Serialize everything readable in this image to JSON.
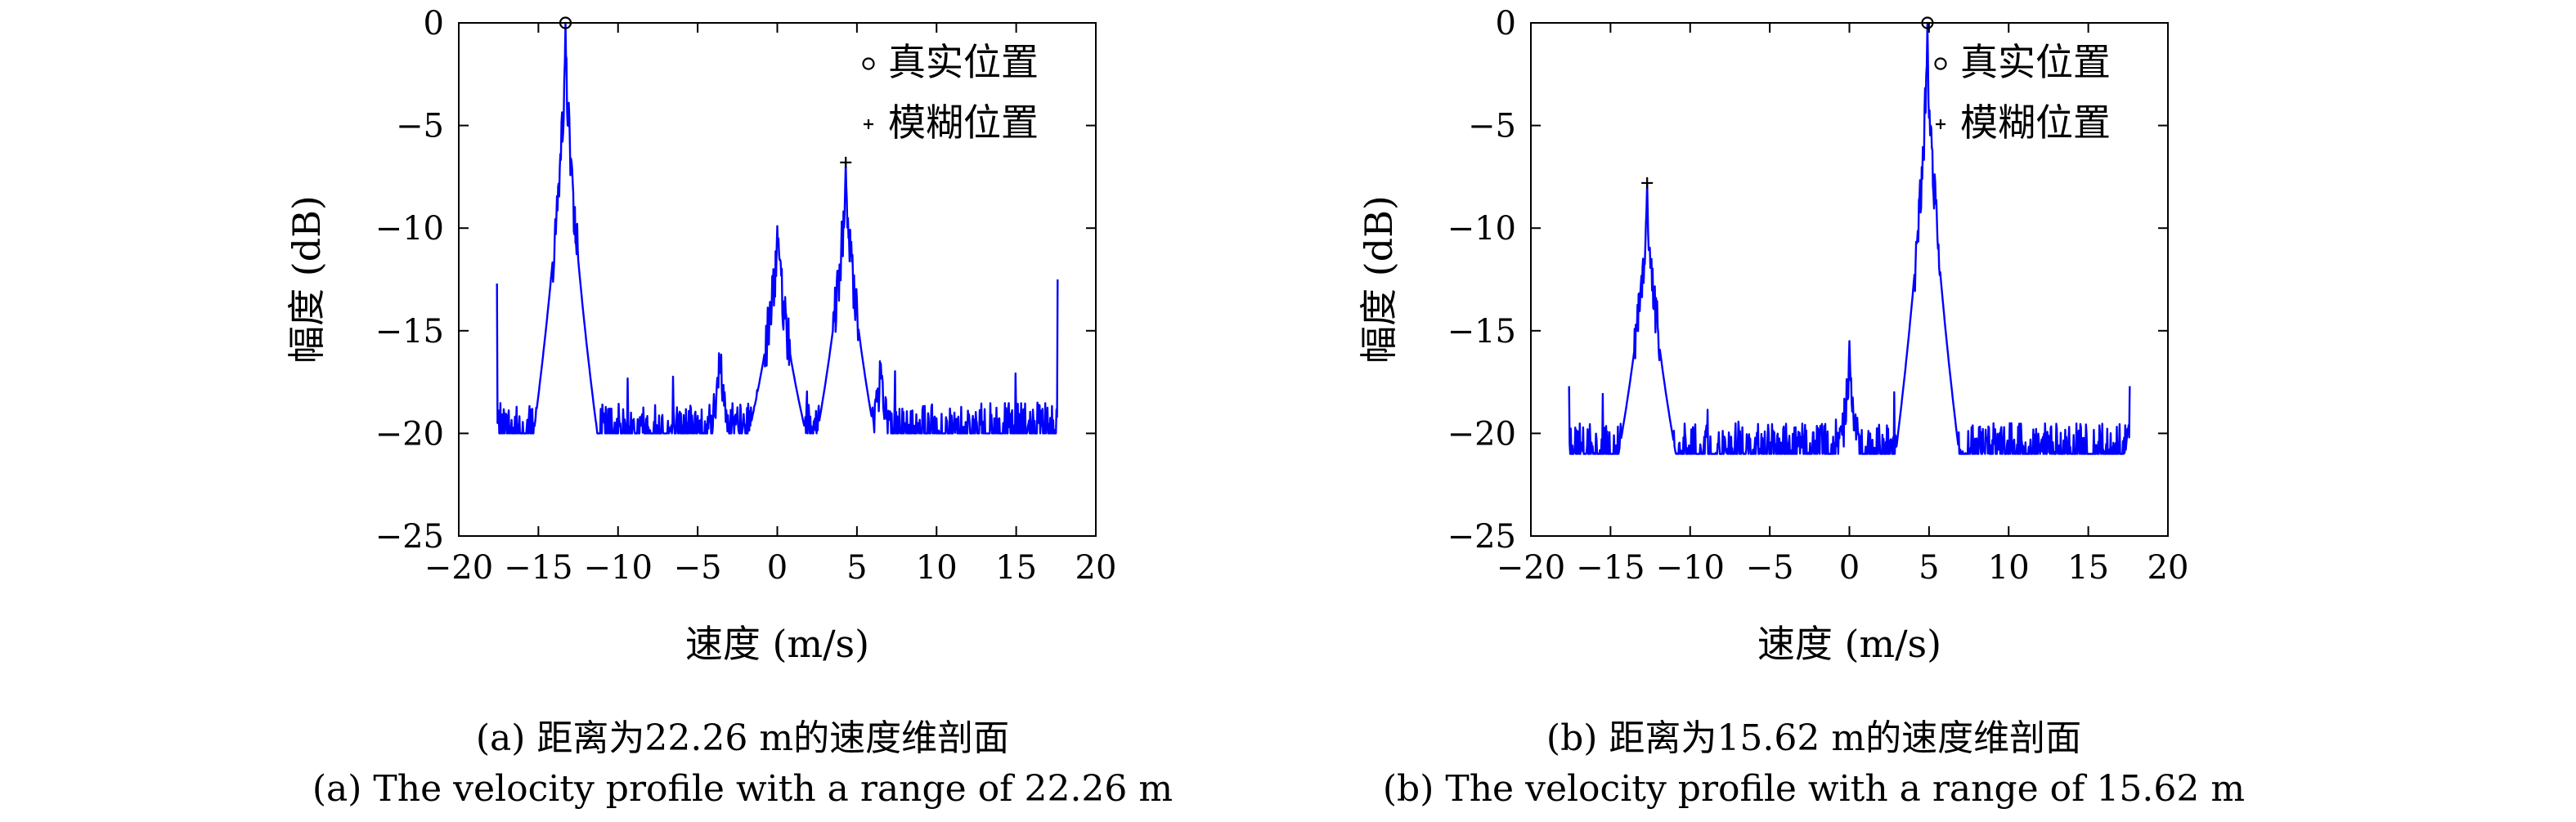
{
  "chart_data": [
    {
      "type": "line",
      "xlabel": "速度 (m/s)",
      "ylabel": "幅度 (dB)",
      "xlim": [
        -20,
        20
      ],
      "ylim": [
        -25,
        0
      ],
      "xticks": [
        -20,
        -15,
        -10,
        -5,
        0,
        5,
        10,
        15,
        20
      ],
      "yticks": [
        0,
        -5,
        -10,
        -15,
        -20,
        -25
      ],
      "xtick_labels": [
        "−20",
        "−15",
        "−10",
        "−5",
        "0",
        "5",
        "10",
        "15",
        "20"
      ],
      "ytick_labels": [
        "0",
        "−5",
        "−10",
        "−15",
        "−20",
        "−25"
      ],
      "grid": false,
      "legend_position": "top-right",
      "legend": [
        {
          "label": "真实位置",
          "marker": "circle"
        },
        {
          "label": "模糊位置",
          "marker": "plus"
        }
      ],
      "series": [
        {
          "color": "#0000ff",
          "x_range": [
            -17.6,
            17.6
          ],
          "noise_floor": -20,
          "edge_values": [
            -12.7,
            -12.5
          ],
          "peaks": [
            [
              -13.3,
              0
            ],
            [
              4.3,
              -6.8
            ],
            [
              0,
              -9.9
            ],
            [
              -3.6,
              -16.3
            ],
            [
              6.5,
              -16.6
            ]
          ]
        }
      ],
      "markers": {
        "true_position": {
          "x": -13.3,
          "y": 0
        },
        "ambiguous_position": {
          "x": 4.3,
          "y": -6.8
        }
      },
      "caption_cn": "(a) 距离为22.26 m的速度维剖面",
      "caption_en": "(a) The velocity profile with a range of 22.26 m"
    },
    {
      "type": "line",
      "xlabel": "速度 (m/s)",
      "ylabel": "幅度 (dB)",
      "xlim": [
        -20,
        20
      ],
      "ylim": [
        -25,
        0
      ],
      "xticks": [
        -20,
        -15,
        -10,
        -5,
        0,
        5,
        10,
        15,
        20
      ],
      "yticks": [
        0,
        -5,
        -10,
        -15,
        -20,
        -25
      ],
      "xtick_labels": [
        "−20",
        "−15",
        "−10",
        "−5",
        "0",
        "5",
        "10",
        "15",
        "20"
      ],
      "ytick_labels": [
        "0",
        "−5",
        "−10",
        "−15",
        "−20",
        "−25"
      ],
      "grid": false,
      "legend_position": "top-right",
      "legend": [
        {
          "label": "真实位置",
          "marker": "circle"
        },
        {
          "label": "模糊位置",
          "marker": "plus"
        }
      ],
      "series": [
        {
          "color": "#0000ff",
          "x_range": [
            -17.6,
            17.6
          ],
          "noise_floor": -21,
          "edge_values": [
            -17.7,
            -17.7
          ],
          "peaks": [
            [
              4.9,
              0
            ],
            [
              -12.7,
              -7.8
            ],
            [
              0,
              -15.5
            ]
          ]
        }
      ],
      "markers": {
        "true_position": {
          "x": 4.9,
          "y": 0
        },
        "ambiguous_position": {
          "x": -12.7,
          "y": -7.8
        }
      },
      "caption_cn": "(b) 距离为15.62 m的速度维剖面",
      "caption_en": "(b) The velocity profile with a range of 15.62 m"
    }
  ]
}
